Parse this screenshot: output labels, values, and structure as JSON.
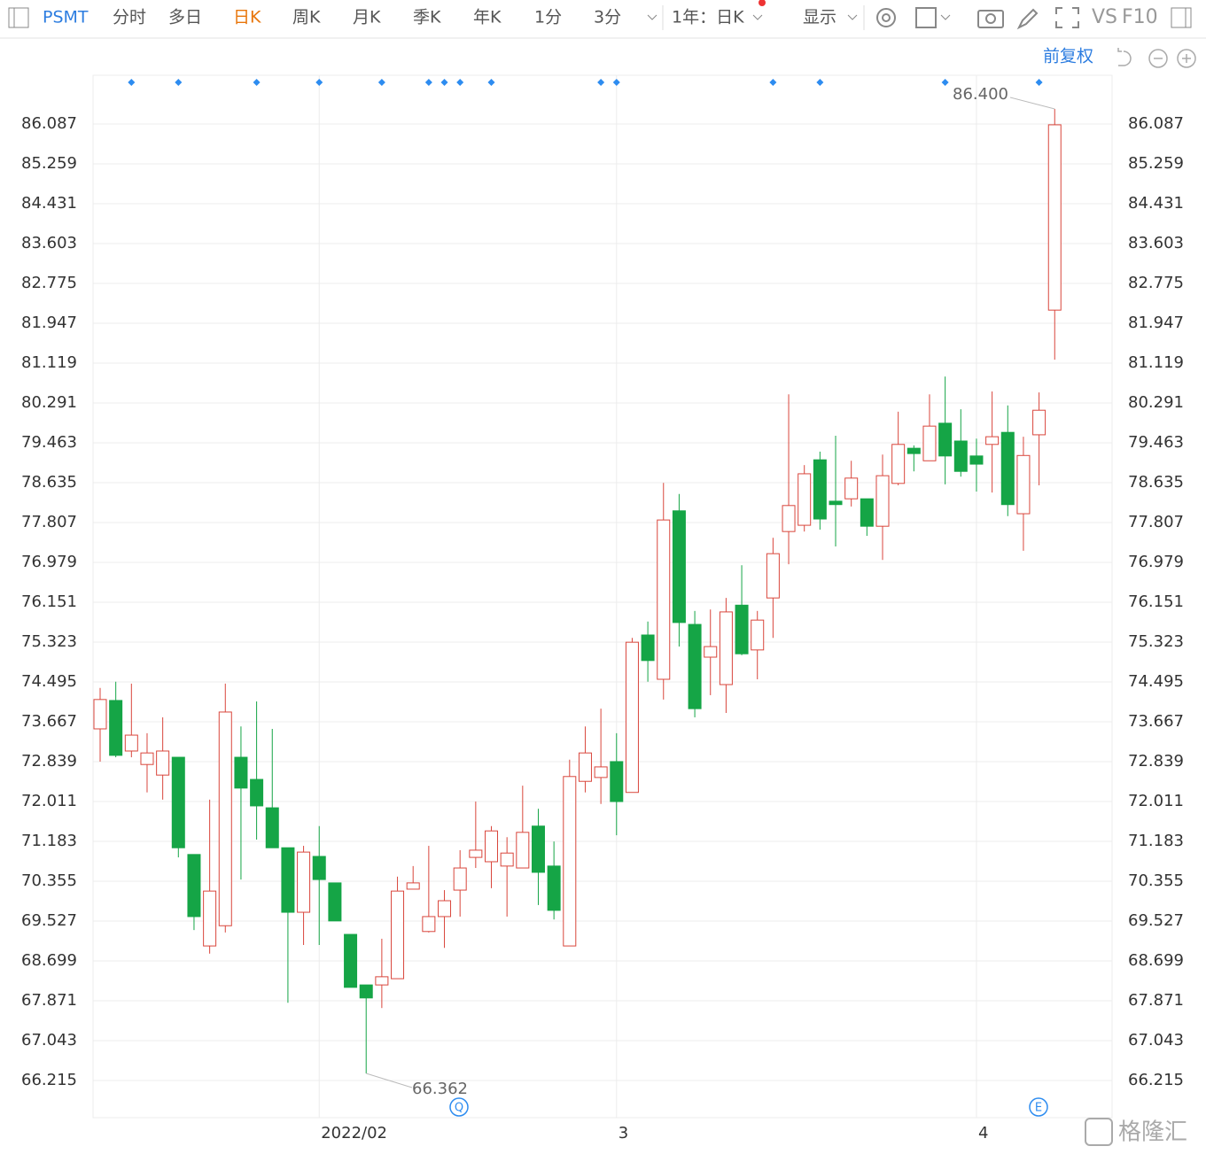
{
  "toolbar": {
    "symbol": "PSMT",
    "tabs": [
      "分时",
      "多日",
      "日K",
      "周K",
      "月K",
      "季K",
      "年K",
      "1分",
      "3分"
    ],
    "period": "1年：日K",
    "display": "显示",
    "vs": "VS",
    "f10": "F10",
    "adjust": "前复权",
    "logo": "格隆汇"
  },
  "chart_data": {
    "type": "candlestick",
    "categories": [
      null,
      null,
      null,
      null,
      null,
      null,
      null,
      null,
      null,
      null,
      null,
      null,
      null,
      null,
      "2022/02",
      null,
      null,
      null,
      null,
      null,
      null,
      null,
      null,
      null,
      null,
      null,
      null,
      null,
      null,
      null,
      null,
      null,
      null,
      "3",
      null,
      null,
      null,
      null,
      null,
      null,
      null,
      null,
      null,
      null,
      null,
      null,
      null,
      null,
      null,
      null,
      null,
      null,
      null,
      null,
      null,
      null,
      "4",
      null,
      null,
      null,
      null,
      null
    ],
    "open": [
      73.52,
      74.11,
      73.06,
      72.78,
      72.56,
      72.93,
      70.91,
      69.01,
      69.43,
      72.93,
      72.47,
      71.88,
      71.05,
      69.71,
      70.87,
      70.32,
      69.25,
      68.2,
      68.2,
      68.33,
      70.19,
      69.31,
      69.62,
      70.17,
      70.85,
      70.76,
      70.67,
      70.63,
      71.5,
      70.67,
      69.01,
      72.43,
      72.51,
      72.84,
      72.2,
      75.47,
      74.55,
      78.05,
      75.69,
      75.01,
      74.44,
      76.09,
      75.16,
      76.24,
      77.62,
      77.75,
      79.11,
      78.25,
      78.3,
      78.3,
      77.73,
      78.62,
      79.35,
      79.09,
      79.87,
      79.5,
      79.19,
      79.43,
      79.68,
      77.99,
      79.63,
      82.22
    ],
    "high": [
      74.37,
      74.5,
      74.46,
      73.43,
      73.76,
      72.93,
      70.91,
      72.05,
      74.46,
      73.57,
      74.09,
      73.52,
      71.05,
      71.09,
      71.5,
      70.32,
      69.25,
      68.2,
      69.16,
      70.45,
      70.67,
      71.09,
      70.17,
      71.0,
      72.01,
      71.5,
      71.27,
      72.34,
      71.86,
      71.18,
      72.88,
      73.57,
      73.94,
      73.43,
      75.41,
      75.75,
      78.63,
      78.4,
      75.97,
      76.0,
      76.24,
      76.92,
      75.97,
      77.49,
      80.47,
      79.0,
      79.28,
      79.61,
      79.09,
      78.3,
      79.22,
      80.11,
      79.41,
      80.47,
      80.84,
      80.16,
      79.55,
      80.53,
      80.24,
      79.59,
      80.51,
      86.4
    ],
    "low": [
      72.84,
      72.93,
      72.93,
      72.2,
      72.05,
      70.85,
      69.34,
      68.85,
      69.29,
      70.39,
      71.22,
      71.05,
      67.83,
      69.03,
      69.03,
      69.53,
      68.15,
      66.362,
      67.72,
      68.33,
      70.19,
      69.29,
      68.97,
      69.62,
      70.63,
      70.21,
      69.62,
      70.63,
      69.86,
      69.56,
      69.01,
      72.2,
      71.96,
      71.31,
      72.2,
      74.5,
      74.13,
      75.23,
      73.76,
      74.22,
      73.85,
      75.05,
      74.55,
      75.41,
      76.94,
      77.62,
      77.66,
      77.31,
      78.14,
      77.53,
      77.03,
      78.58,
      78.87,
      79.09,
      78.6,
      78.76,
      78.45,
      78.43,
      77.94,
      77.22,
      78.58,
      81.19
    ],
    "close": [
      74.13,
      72.97,
      73.39,
      73.02,
      73.06,
      71.05,
      69.62,
      70.15,
      73.87,
      72.29,
      71.92,
      71.05,
      69.71,
      70.96,
      70.39,
      69.53,
      68.15,
      67.93,
      68.37,
      70.15,
      70.32,
      69.62,
      69.95,
      70.63,
      71.0,
      71.4,
      70.94,
      71.37,
      70.54,
      69.75,
      72.53,
      73.02,
      72.73,
      72.01,
      75.32,
      74.94,
      77.86,
      75.73,
      73.94,
      75.23,
      75.95,
      75.08,
      75.78,
      77.16,
      78.16,
      78.82,
      77.88,
      78.18,
      78.73,
      77.73,
      78.78,
      79.43,
      79.24,
      79.81,
      79.19,
      78.87,
      79.02,
      79.59,
      78.18,
      79.2,
      80.14,
      86.07
    ],
    "up_color": "#d9463c",
    "down_color": "#15a546",
    "ylim": [
      65.442,
      87.099
    ],
    "yticks": [
      66.215,
      67.043,
      67.871,
      68.699,
      69.527,
      70.355,
      71.183,
      72.011,
      72.839,
      73.667,
      74.495,
      75.323,
      76.151,
      76.979,
      77.807,
      78.635,
      79.463,
      80.291,
      81.119,
      81.947,
      82.775,
      83.603,
      84.431,
      85.259,
      86.087
    ],
    "grid": true,
    "annotations": [
      {
        "text": "86.400"
      },
      {
        "text": "66.362"
      }
    ],
    "event_icons": [
      "Q",
      "E"
    ]
  }
}
